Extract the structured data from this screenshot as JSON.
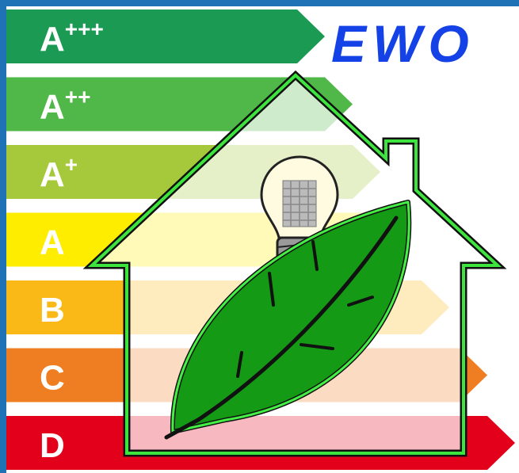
{
  "title": "EWO",
  "ratings": [
    {
      "letter": "A",
      "sup": "+++"
    },
    {
      "letter": "A",
      "sup": "++"
    },
    {
      "letter": "A",
      "sup": "+"
    },
    {
      "letter": "A"
    },
    {
      "letter": "B"
    },
    {
      "letter": "C"
    },
    {
      "letter": "D"
    }
  ]
}
